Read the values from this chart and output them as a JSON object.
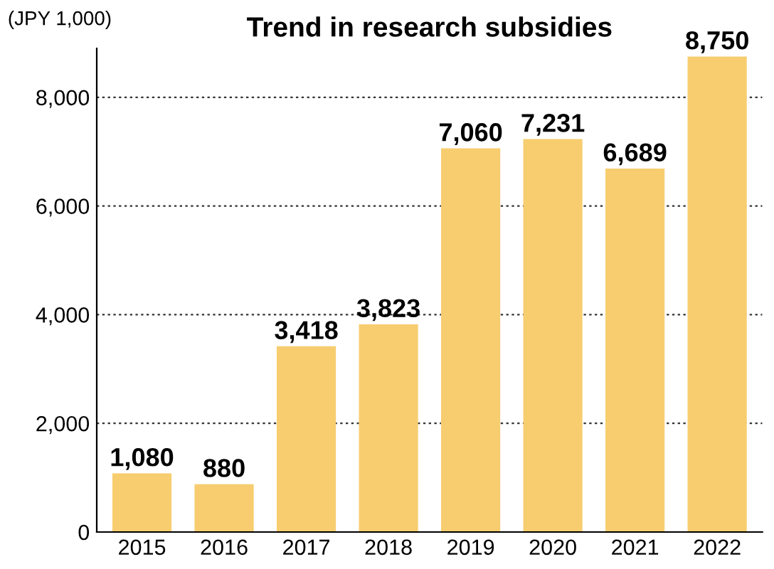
{
  "chart_data": {
    "type": "bar",
    "title": "Trend in research subsidies",
    "ylabel": "(JPY 1,000)",
    "categories": [
      "2015",
      "2016",
      "2017",
      "2018",
      "2019",
      "2020",
      "2021",
      "2022"
    ],
    "values": [
      1080,
      880,
      3418,
      3823,
      7060,
      7231,
      6689,
      8750
    ],
    "value_labels": [
      "1,080",
      "880",
      "3,418",
      "3,823",
      "7,060",
      "7,231",
      "6,689",
      "8,750"
    ],
    "color": "#f7cd70",
    "ylim": [
      0,
      8900
    ],
    "yticks": [
      0,
      {
        "value": 2000,
        "label": "2,000"
      },
      {
        "value": 4000,
        "label": "4,000"
      },
      {
        "value": 6000,
        "label": "6,000"
      },
      {
        "value": 8000,
        "label": "8,000"
      }
    ],
    "grid": "y"
  }
}
